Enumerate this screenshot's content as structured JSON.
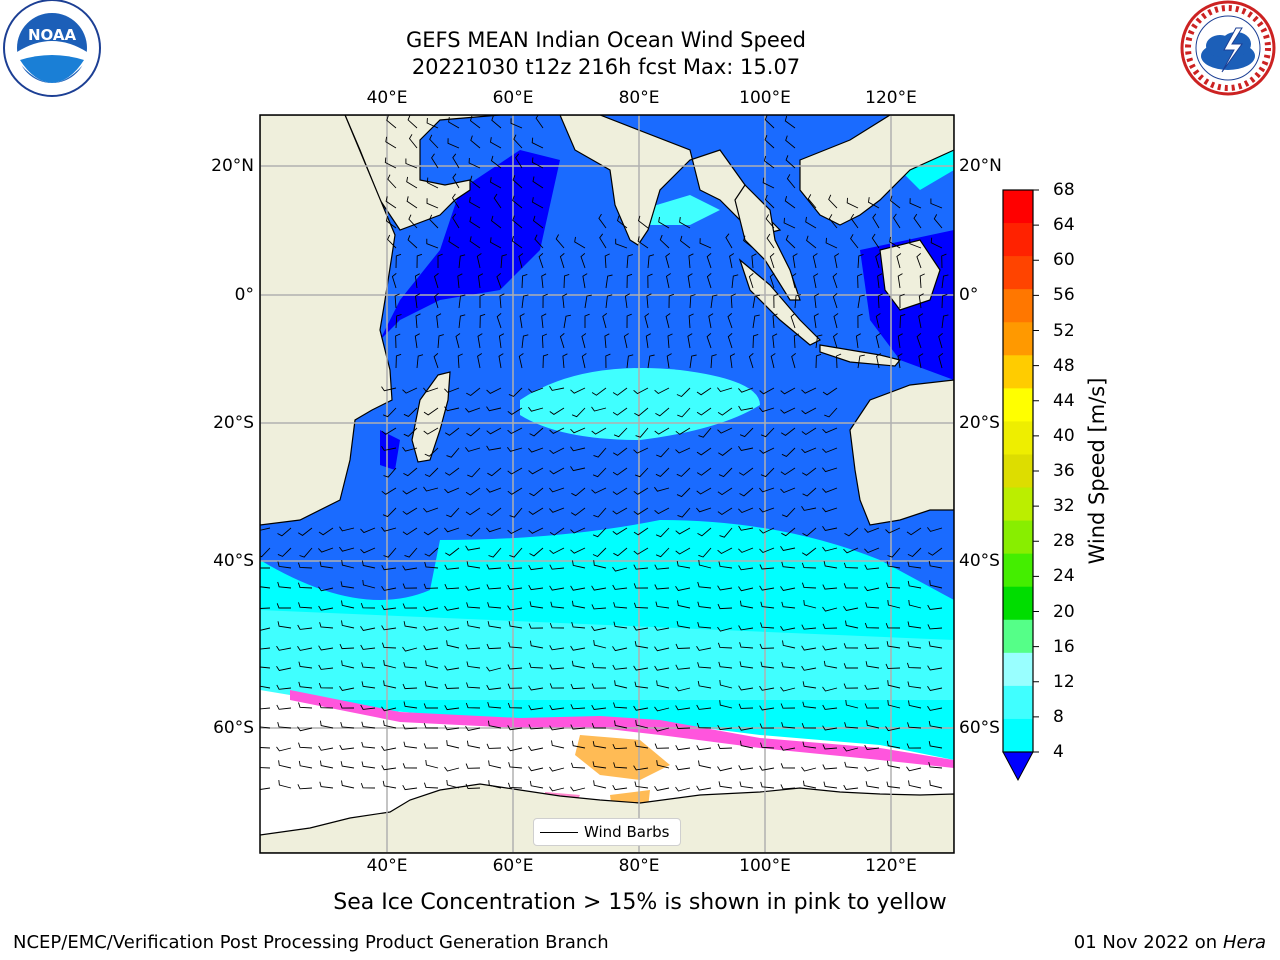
{
  "header": {
    "title_line1": "GEFS MEAN Indian Ocean Wind Speed",
    "title_line2": "20221030 t12z 216h fcst   Max: 15.07"
  },
  "logos": {
    "noaa": {
      "text": "NOAA",
      "ring_text": "NATIONAL OCEANIC AND ATMOSPHERIC ADMINISTRATION · U.S. DEPARTMENT OF COMMERCE"
    },
    "nws": {
      "ring_text": "NATIONAL WEATHER SERVICE"
    }
  },
  "map": {
    "lon_ticks_top": [
      "40°E",
      "60°E",
      "80°E",
      "100°E",
      "120°E"
    ],
    "lon_ticks_bottom": [
      "40°E",
      "60°E",
      "80°E",
      "100°E",
      "120°E"
    ],
    "lat_ticks_left": [
      "20°N",
      "0°",
      "20°S",
      "40°S",
      "60°S"
    ],
    "lat_ticks_right": [
      "20°N",
      "0°",
      "20°S",
      "40°S",
      "60°S"
    ],
    "extent": {
      "lon": [
        20,
        130
      ],
      "lat": [
        -76,
        26
      ]
    },
    "colors": {
      "land": "#efefdc",
      "ice_free_low": "#0000ff"
    },
    "legend": {
      "label": "Wind Barbs"
    }
  },
  "colorbar": {
    "label": "Wind Speed [m/s]",
    "ticks": [
      "4",
      "8",
      "12",
      "16",
      "20",
      "24",
      "28",
      "32",
      "36",
      "40",
      "44",
      "48",
      "52",
      "56",
      "60",
      "64",
      "68"
    ],
    "colors": [
      "#0080ff",
      "#00ffff",
      "#40ffff",
      "#99ffff",
      "#55ff88",
      "#00dd00",
      "#44ee00",
      "#88ee00",
      "#bbee00",
      "#dddd00",
      "#eeee00",
      "#ffff00",
      "#ffcc00",
      "#ff9900",
      "#ff7700",
      "#ff4400",
      "#ff2200",
      "#ff0000"
    ],
    "extend_color": "#0000ff"
  },
  "note": "Sea Ice Concentration > 15% is shown in pink to yellow",
  "footer": {
    "left": "NCEP/EMC/Verification Post Processing Product Generation Branch",
    "date": "01 Nov 2022 on",
    "host": "Hera"
  }
}
